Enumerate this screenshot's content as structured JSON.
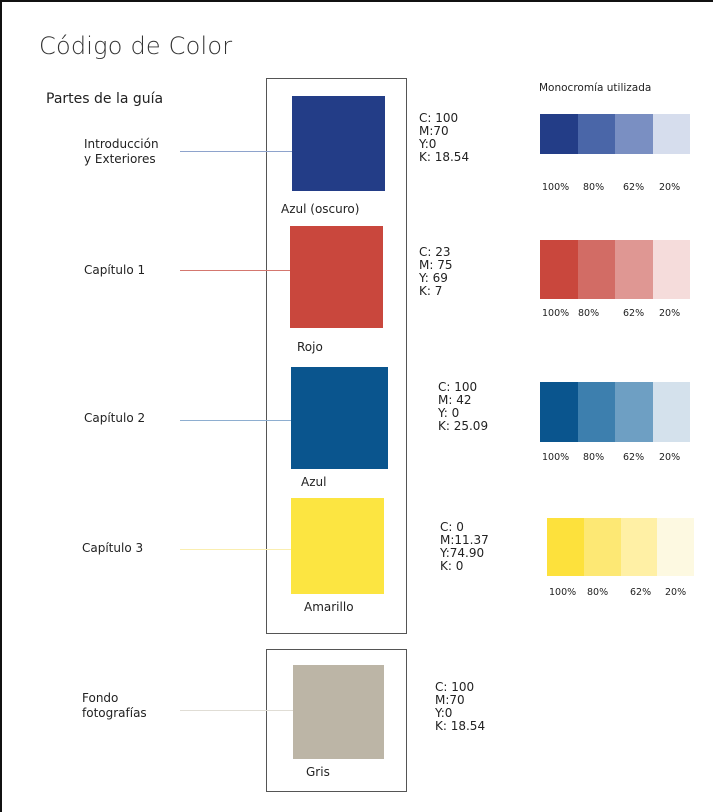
{
  "title": "Código de Color",
  "subtitle": "Partes de la guía",
  "mono_title": "Monocromía utilizada",
  "sections": [
    {
      "label_lines": [
        "Introducción",
        "y Exteriores"
      ],
      "swatch_name": "Azul (oscuro)",
      "color": "#233d87",
      "cmyk": [
        "C: 100",
        "M:70",
        "Y:0",
        "K: 18.54"
      ],
      "line_color": "#8ea3cc",
      "mono": [
        "#233d87",
        "#4a66a8",
        "#7a8fc2",
        "#d6dded"
      ],
      "pcts": [
        "100%",
        "80%",
        "62%",
        "20%"
      ]
    },
    {
      "label_lines": [
        "Capítulo 1"
      ],
      "swatch_name": "Rojo",
      "color": "#c9473d",
      "cmyk": [
        "C: 23",
        "M: 75",
        "Y: 69",
        "K: 7"
      ],
      "line_color": "#d4776f",
      "mono": [
        "#c9473d",
        "#d26c65",
        "#df9793",
        "#f5dcdb"
      ],
      "pcts": [
        "100%",
        "80%",
        "62%",
        "20%"
      ]
    },
    {
      "label_lines": [
        "Capítulo 2"
      ],
      "swatch_name": "Azul",
      "color": "#0a558e",
      "cmyk": [
        "C: 100",
        "M: 42",
        "Y: 0",
        "K: 25.09"
      ],
      "line_color": "#8eaed0",
      "mono": [
        "#0a558e",
        "#3d7fae",
        "#6e9fc3",
        "#d4e1ec"
      ],
      "pcts": [
        "100%",
        "80%",
        "62%",
        "20%"
      ]
    },
    {
      "label_lines": [
        "Capítulo 3"
      ],
      "swatch_name": "Amarillo",
      "color": "#fce541",
      "cmyk": [
        "C: 0",
        "M:11.37",
        "Y:74.90",
        "K: 0"
      ],
      "line_color": "#faeeb0",
      "mono": [
        "#fde13c",
        "#fde874",
        "#fff0a5",
        "#fdf9e1"
      ],
      "pcts": [
        "100%",
        "80%",
        "62%",
        "20%"
      ]
    },
    {
      "label_lines": [
        "Fondo",
        "fotografías"
      ],
      "swatch_name": "Gris",
      "color": "#bcb5a6",
      "cmyk": [
        "C: 100",
        "M:70",
        "Y:0",
        "K: 18.54"
      ],
      "line_color": "#e0ddd5"
    }
  ]
}
